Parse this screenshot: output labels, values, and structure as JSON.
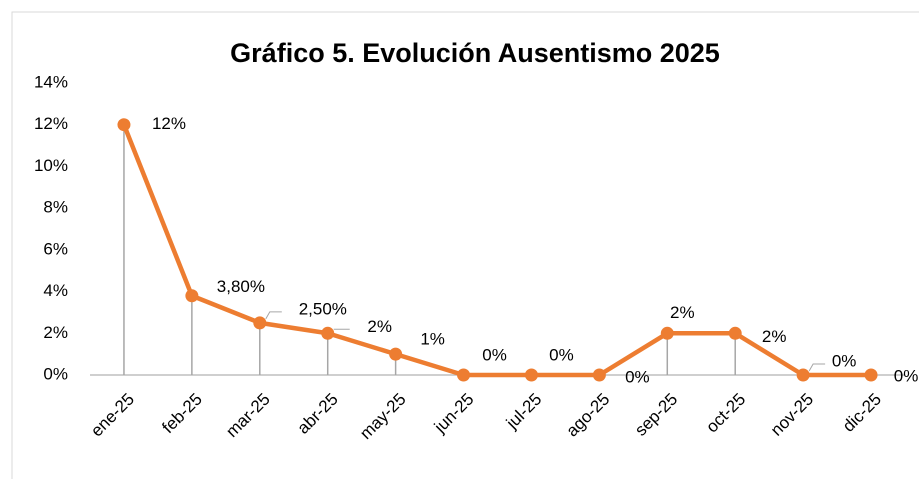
{
  "chart_data": {
    "type": "line",
    "title": "Gráfico 5. Evolución Ausentismo 2025",
    "categories": [
      "ene-25",
      "feb-25",
      "mar-25",
      "abr-25",
      "may-25",
      "jun-25",
      "jul-25",
      "ago-25",
      "sep-25",
      "oct-25",
      "nov-25",
      "dic-25"
    ],
    "series": [
      {
        "name": "Ausentismo",
        "color": "#ed7d31",
        "values": [
          12,
          3.8,
          2.5,
          2,
          1,
          0,
          0,
          0,
          2,
          2,
          0,
          0
        ],
        "value_labels": [
          "12%",
          "3,80%",
          "2,50%",
          "2%",
          "1%",
          "0%",
          "0%",
          "0%",
          "2%",
          "2%",
          "0%",
          "0%"
        ]
      }
    ],
    "ylim": [
      0,
      14
    ],
    "yticks": [
      {
        "value": 0,
        "label": "0%"
      },
      {
        "value": 2,
        "label": "2%"
      },
      {
        "value": 4,
        "label": "4%"
      },
      {
        "value": 6,
        "label": "6%"
      },
      {
        "value": 8,
        "label": "8%"
      },
      {
        "value": 10,
        "label": "10%"
      },
      {
        "value": 12,
        "label": "12%"
      },
      {
        "value": 14,
        "label": "14%"
      }
    ],
    "grid": false,
    "drop_lines": true
  }
}
